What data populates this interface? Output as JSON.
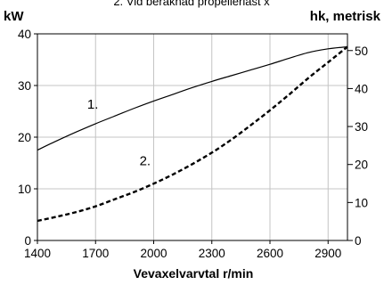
{
  "chart_data": {
    "type": "line",
    "top_note": "2. Vid beräknad propellerlast x",
    "xlabel": "Vevaxelvarvtal r/min",
    "y_left_unit": "kW",
    "y_right_unit": "hk, metrisk",
    "xlim": [
      1400,
      3000
    ],
    "x_ticks": [
      1400,
      1700,
      2000,
      2300,
      2600,
      2900
    ],
    "ylim_left": [
      0,
      40
    ],
    "y_left_ticks": [
      0,
      10,
      20,
      30,
      40
    ],
    "ylim_right": [
      0,
      54.4
    ],
    "y_right_ticks": [
      0,
      10,
      20,
      30,
      40,
      50
    ],
    "grid": true,
    "series": [
      {
        "label": "1.",
        "style": "solid",
        "x": [
          1400,
          1500,
          1600,
          1700,
          1800,
          1900,
          2000,
          2100,
          2200,
          2300,
          2400,
          2500,
          2600,
          2700,
          2800,
          2900,
          3000
        ],
        "y": [
          17.5,
          19.3,
          21.0,
          22.6,
          24.1,
          25.6,
          27.0,
          28.3,
          29.6,
          30.8,
          31.9,
          33.0,
          34.1,
          35.3,
          36.4,
          37.1,
          37.5
        ]
      },
      {
        "label": "2.",
        "style": "dashed",
        "x": [
          1400,
          1500,
          1600,
          1700,
          1800,
          1900,
          2000,
          2100,
          2200,
          2300,
          2400,
          2500,
          2600,
          2700,
          2800,
          2900,
          3000
        ],
        "y": [
          3.8,
          4.6,
          5.5,
          6.6,
          8.0,
          9.4,
          11.0,
          12.8,
          14.8,
          17.0,
          19.5,
          22.3,
          25.2,
          28.3,
          31.5,
          34.5,
          37.5
        ]
      }
    ]
  }
}
